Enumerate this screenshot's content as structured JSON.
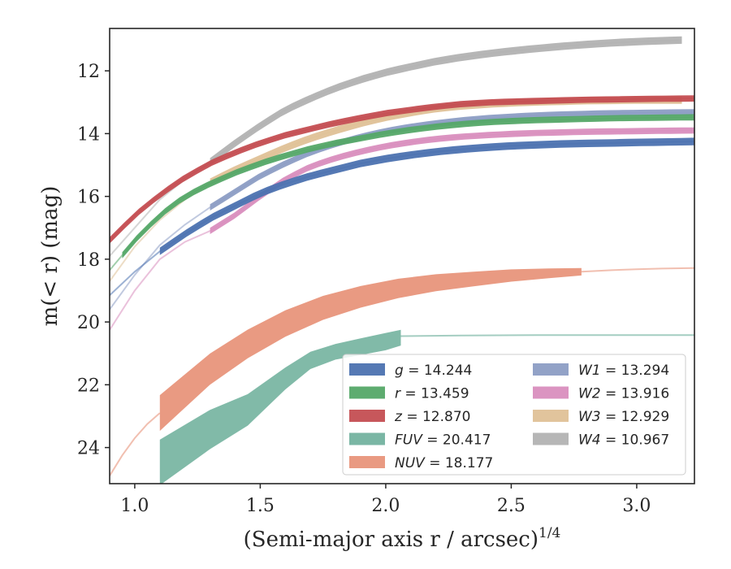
{
  "chart_data": {
    "type": "line",
    "title": "",
    "xlabel": "(Semi-major axis r / arcsec)",
    "xlabel_sup": "1/4",
    "ylabel": "m(< r) (mag)",
    "xlim": [
      0.9,
      3.23
    ],
    "ylim": [
      25.15,
      10.65
    ],
    "y_inverted": true,
    "grid": false,
    "legend_placement": "lower-right",
    "x_ticks": [
      "1.0",
      "1.5",
      "2.0",
      "2.5",
      "3.0"
    ],
    "y_ticks": [
      "12",
      "14",
      "16",
      "18",
      "20",
      "22",
      "24"
    ],
    "series": [
      {
        "key": "g",
        "label": "g = 14.244",
        "color": "#4c72b0",
        "x": [
          0.9,
          1.0,
          1.1,
          1.2,
          1.3,
          1.4,
          1.5,
          1.6,
          1.7,
          1.8,
          1.9,
          2.0,
          2.1,
          2.2,
          2.3,
          2.4,
          2.5,
          2.6,
          2.7,
          2.8,
          2.9,
          3.0,
          3.1,
          3.23
        ],
        "y": [
          19.15,
          18.4,
          17.75,
          17.2,
          16.7,
          16.3,
          15.9,
          15.6,
          15.35,
          15.15,
          14.95,
          14.8,
          14.68,
          14.58,
          14.5,
          14.44,
          14.39,
          14.36,
          14.33,
          14.31,
          14.3,
          14.28,
          14.27,
          14.25
        ],
        "band_start_x": 1.1,
        "band_end_x": 3.23,
        "band_width": 0.12
      },
      {
        "key": "r",
        "label": "r = 13.459",
        "color": "#55a868",
        "x": [
          0.9,
          1.0,
          1.1,
          1.2,
          1.3,
          1.4,
          1.5,
          1.6,
          1.7,
          1.8,
          1.9,
          2.0,
          2.1,
          2.2,
          2.3,
          2.4,
          2.5,
          2.6,
          2.7,
          2.8,
          2.9,
          3.0,
          3.1,
          3.23
        ],
        "y": [
          18.35,
          17.4,
          16.6,
          16.0,
          15.6,
          15.25,
          14.95,
          14.7,
          14.48,
          14.3,
          14.15,
          14.0,
          13.88,
          13.78,
          13.7,
          13.64,
          13.6,
          13.57,
          13.55,
          13.53,
          13.51,
          13.5,
          13.49,
          13.48
        ],
        "band_start_x": 0.95,
        "band_end_x": 3.23,
        "band_width": 0.1
      },
      {
        "key": "z",
        "label": "z = 12.870",
        "color": "#c44e52",
        "x": [
          0.9,
          1.0,
          1.1,
          1.2,
          1.3,
          1.4,
          1.5,
          1.6,
          1.7,
          1.8,
          1.9,
          2.0,
          2.1,
          2.2,
          2.3,
          2.4,
          2.5,
          2.6,
          2.7,
          2.8,
          2.9,
          3.0,
          3.1,
          3.23
        ],
        "y": [
          17.4,
          16.6,
          15.95,
          15.4,
          14.95,
          14.6,
          14.3,
          14.05,
          13.85,
          13.66,
          13.5,
          13.35,
          13.24,
          13.14,
          13.06,
          13.01,
          12.98,
          12.96,
          12.94,
          12.92,
          12.91,
          12.9,
          12.89,
          12.88
        ],
        "band_start_x": 0.9,
        "band_end_x": 3.23,
        "band_width": 0.1
      },
      {
        "key": "FUV",
        "label": "FUV = 20.417",
        "color": "#73b29f",
        "x": [
          1.1,
          1.3,
          1.45,
          1.6,
          1.7,
          1.8,
          1.9,
          2.0,
          2.06
        ],
        "y": [
          24.85,
          23.4,
          22.8,
          21.8,
          21.2,
          20.9,
          20.75,
          20.55,
          20.45
        ],
        "band_lower": [
          25.2,
          24.05,
          23.3,
          22.15,
          21.5,
          21.2,
          21.05,
          20.9,
          20.75
        ],
        "band_upper": [
          23.75,
          22.8,
          22.3,
          21.45,
          20.95,
          20.7,
          20.52,
          20.35,
          20.25
        ],
        "tail_x": [
          2.06,
          2.3,
          2.6,
          2.9,
          3.23
        ],
        "tail_y": [
          20.45,
          20.43,
          20.42,
          20.42,
          20.42
        ]
      },
      {
        "key": "NUV",
        "label": "NUV = 18.177",
        "color": "#e8957b",
        "x": [
          1.1,
          1.2,
          1.3,
          1.45,
          1.6,
          1.75,
          1.9,
          2.05,
          2.2,
          2.35,
          2.5,
          2.65,
          2.78
        ],
        "y": [
          22.9,
          22.2,
          21.5,
          20.7,
          20.05,
          19.55,
          19.2,
          18.93,
          18.75,
          18.63,
          18.52,
          18.45,
          18.4
        ],
        "band_width": 0.5,
        "head_x": [
          0.9,
          0.95,
          1.0,
          1.05,
          1.1
        ],
        "head_y": [
          24.9,
          24.25,
          23.7,
          23.25,
          22.9
        ],
        "tail_x": [
          2.78,
          2.9,
          3.0,
          3.1,
          3.23
        ],
        "tail_y": [
          18.4,
          18.35,
          18.32,
          18.3,
          18.28
        ]
      },
      {
        "key": "W1",
        "label": "W1 = 13.294",
        "color": "#8c9dc4",
        "x": [
          0.9,
          1.0,
          1.1,
          1.2,
          1.3,
          1.4,
          1.5,
          1.6,
          1.7,
          1.8,
          1.9,
          2.0,
          2.1,
          2.2,
          2.3,
          2.4,
          2.5,
          2.6,
          2.7,
          2.8,
          2.9,
          3.0,
          3.1,
          3.23
        ],
        "y": [
          19.6,
          18.5,
          17.55,
          16.9,
          16.35,
          15.85,
          15.35,
          14.95,
          14.6,
          14.33,
          14.1,
          13.92,
          13.78,
          13.67,
          13.58,
          13.51,
          13.46,
          13.42,
          13.39,
          13.37,
          13.35,
          13.34,
          13.33,
          13.32
        ],
        "band_start_x": 1.3,
        "band_end_x": 3.23,
        "band_width": 0.1
      },
      {
        "key": "W2",
        "label": "W2 = 13.916",
        "color": "#d98ebe",
        "x": [
          0.9,
          1.0,
          1.1,
          1.2,
          1.3,
          1.4,
          1.5,
          1.6,
          1.7,
          1.8,
          1.9,
          2.0,
          2.1,
          2.2,
          2.3,
          2.4,
          2.5,
          2.6,
          2.7,
          2.8,
          2.9,
          3.0,
          3.1,
          3.23
        ],
        "y": [
          20.25,
          19.0,
          18.0,
          17.45,
          17.1,
          16.6,
          16.0,
          15.45,
          15.05,
          14.78,
          14.57,
          14.4,
          14.27,
          14.17,
          14.1,
          14.05,
          14.01,
          13.98,
          13.96,
          13.94,
          13.93,
          13.92,
          13.91,
          13.9
        ],
        "band_start_x": 1.3,
        "band_end_x": 3.23,
        "band_width": 0.1
      },
      {
        "key": "W3",
        "label": "W3 = 12.929",
        "color": "#dfc197",
        "x": [
          0.9,
          1.0,
          1.1,
          1.2,
          1.3,
          1.4,
          1.5,
          1.6,
          1.7,
          1.8,
          1.9,
          2.0,
          2.1,
          2.2,
          2.3,
          2.4,
          2.5,
          2.6,
          2.7,
          2.8,
          2.9,
          3.0,
          3.1,
          3.18
        ],
        "y": [
          18.7,
          17.6,
          16.75,
          16.1,
          15.55,
          15.15,
          14.8,
          14.45,
          14.15,
          13.9,
          13.67,
          13.48,
          13.33,
          13.2,
          13.12,
          13.06,
          13.02,
          12.99,
          12.97,
          12.95,
          12.94,
          12.93,
          12.93,
          12.93
        ],
        "band_start_x": 1.3,
        "band_end_x": 3.18,
        "band_width": 0.12
      },
      {
        "key": "W4",
        "label": "W4 = 10.967",
        "color": "#b2b2b2",
        "x": [
          0.9,
          1.0,
          1.1,
          1.2,
          1.3,
          1.4,
          1.5,
          1.6,
          1.7,
          1.8,
          1.9,
          2.0,
          2.1,
          2.2,
          2.3,
          2.4,
          2.5,
          2.6,
          2.7,
          2.8,
          2.9,
          3.0,
          3.1,
          3.18
        ],
        "y": [
          17.9,
          17.0,
          16.1,
          15.45,
          14.9,
          14.3,
          13.75,
          13.25,
          12.88,
          12.55,
          12.28,
          12.05,
          11.87,
          11.7,
          11.57,
          11.46,
          11.37,
          11.29,
          11.22,
          11.16,
          11.11,
          11.07,
          11.04,
          11.02
        ],
        "band_start_x": 1.3,
        "band_end_x": 3.18,
        "band_width": 0.12
      }
    ],
    "legend_columns": [
      [
        "g",
        "r",
        "z",
        "FUV",
        "NUV"
      ],
      [
        "W1",
        "W2",
        "W3",
        "W4"
      ]
    ]
  }
}
